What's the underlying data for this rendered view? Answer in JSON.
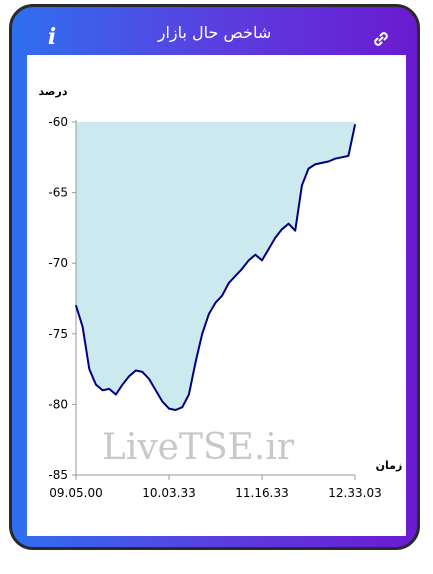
{
  "app": {
    "title": "شاخص حال بازار",
    "info_label": "i",
    "link_icon": "link-icon"
  },
  "colors": {
    "frame_start": "#2f6ff0",
    "frame_end": "#6a1bd0",
    "area_fill": "#cde9f0",
    "line": "#000080",
    "watermark": "#c8c8c8"
  },
  "watermark": "LiveTSE.ir",
  "chart_data": {
    "type": "area",
    "ylabel": "درصد",
    "xlabel": "زمان",
    "ylim": [
      -85,
      -60
    ],
    "yticks": [
      "-60",
      "-65",
      "-70",
      "-75",
      "-80",
      "-85"
    ],
    "xticks": [
      "09.05.00",
      "10.03.33",
      "11.16.33",
      "12.33.03"
    ],
    "x": [
      "09.05",
      "09.10",
      "09.15",
      "09.20",
      "09.25",
      "09.30",
      "09.35",
      "09.40",
      "09.45",
      "09.50",
      "09.55",
      "10.00",
      "10.05",
      "10.10",
      "10.15",
      "10.20",
      "10.25",
      "10.30",
      "10.35",
      "10.40",
      "10.45",
      "10.50",
      "10.55",
      "11.00",
      "11.05",
      "11.10",
      "11.15",
      "11.20",
      "11.25",
      "11.30",
      "11.35",
      "11.40",
      "11.45",
      "11.50",
      "11.55",
      "12.00",
      "12.05",
      "12.10",
      "12.15",
      "12.20",
      "12.25",
      "12.30",
      "12.33"
    ],
    "series": [
      {
        "values": [
          -73,
          -74.5,
          -77.5,
          -78.6,
          -79.0,
          -78.9,
          -79.3,
          -78.6,
          -78.0,
          -77.6,
          -77.7,
          -78.2,
          -79.0,
          -79.8,
          -80.3,
          -80.4,
          -80.2,
          -79.3,
          -77.0,
          -75.0,
          -73.6,
          -72.8,
          -72.3,
          -71.4,
          -70.9,
          -70.4,
          -69.8,
          -69.4,
          -69.8,
          -69.0,
          -68.2,
          -67.6,
          -67.2,
          -67.7,
          -64.5,
          -63.3,
          -63.0,
          -62.9,
          -62.8,
          -62.6,
          -62.5,
          -62.4,
          -60.2
        ]
      }
    ]
  }
}
